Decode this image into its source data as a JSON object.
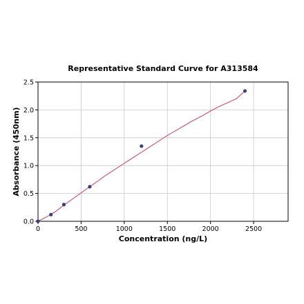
{
  "chart_data": {
    "type": "scatter",
    "title": "Representative Standard Curve for A313584",
    "xlabel": "Concentration (ng/L)",
    "ylabel": "Absorbance (450nm)",
    "xlim": [
      0,
      2900
    ],
    "ylim": [
      0,
      2.5
    ],
    "x_ticks": [
      0,
      500,
      1000,
      1500,
      2000,
      2500
    ],
    "y_ticks": [
      0.0,
      0.5,
      1.0,
      1.5,
      2.0,
      2.5
    ],
    "x_tick_labels": [
      "0",
      "500",
      "1000",
      "1500",
      "2000",
      "2500"
    ],
    "y_tick_labels": [
      "0.0",
      "0.5",
      "1.0",
      "1.5",
      "2.0",
      "2.5"
    ],
    "grid": true,
    "series": [
      {
        "kind": "points",
        "x": [
          0,
          150,
          300,
          600,
          1200,
          2400
        ],
        "y": [
          0.0,
          0.12,
          0.3,
          0.62,
          1.35,
          2.34
        ]
      },
      {
        "kind": "fitted-curve",
        "x": [
          0,
          100,
          200,
          300,
          400,
          500,
          600,
          700,
          800,
          900,
          1000,
          1100,
          1200,
          1300,
          1400,
          1500,
          1600,
          1700,
          1800,
          1900,
          2000,
          2100,
          2200,
          2300,
          2400
        ],
        "y": [
          0.0,
          0.08,
          0.17,
          0.29,
          0.4,
          0.51,
          0.62,
          0.73,
          0.84,
          0.94,
          1.04,
          1.14,
          1.24,
          1.34,
          1.44,
          1.54,
          1.63,
          1.72,
          1.81,
          1.89,
          1.98,
          2.06,
          2.13,
          2.2,
          2.34
        ]
      }
    ],
    "colors": {
      "points": "#3d3d7a",
      "curve": "#c0506a",
      "grid": "#c8c8c8",
      "axes": "#000000"
    }
  }
}
